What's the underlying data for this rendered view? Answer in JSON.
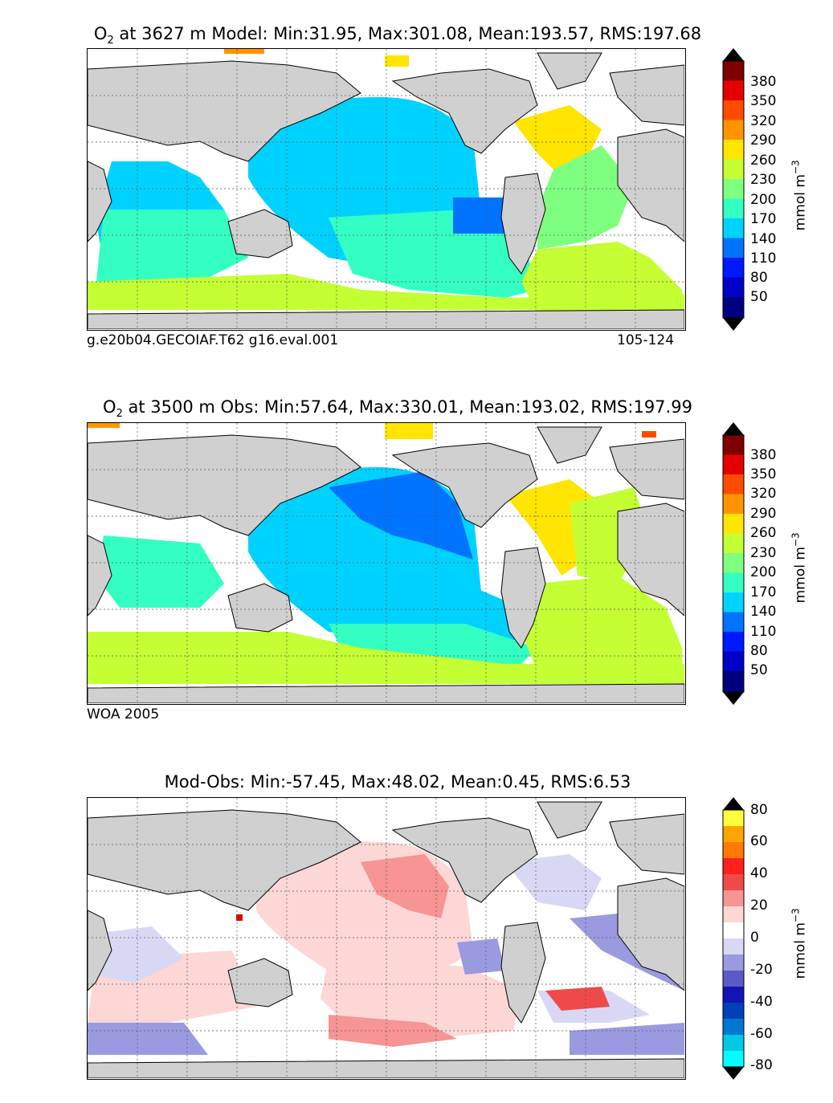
{
  "panels": [
    {
      "id": "model",
      "title_prefix": "O",
      "title_sub": "2",
      "title_rest": " at 3627 m Model: Min:31.95, Max:301.08, Mean:193.57, RMS:197.68",
      "caption_left": "g.e20b04.GECOIAF.T62 g16.eval.001",
      "caption_right": "105-124",
      "colorbar_ticks": [
        "380",
        "350",
        "320",
        "290",
        "260",
        "230",
        "200",
        "170",
        "140",
        "110",
        "80",
        "50"
      ],
      "units": "mmol m",
      "units_sup": "−3"
    },
    {
      "id": "obs",
      "title_prefix": "O",
      "title_sub": "2",
      "title_rest": " at 3500 m Obs: Min:57.64, Max:330.01, Mean:193.02, RMS:197.99",
      "caption_left": "WOA 2005",
      "caption_right": "",
      "colorbar_ticks": [
        "380",
        "350",
        "320",
        "290",
        "260",
        "230",
        "200",
        "170",
        "140",
        "110",
        "80",
        "50"
      ],
      "units": "mmol m",
      "units_sup": "−3"
    },
    {
      "id": "diff",
      "title_prefix": "",
      "title_sub": "",
      "title_rest": "Mod-Obs: Min:-57.45, Max:48.02, Mean:0.45, RMS:6.53",
      "caption_left": "",
      "caption_right": "",
      "colorbar_ticks": [
        "80",
        "60",
        "40",
        "20",
        "0",
        "-20",
        "-40",
        "-60",
        "-80"
      ],
      "units": "mmol m",
      "units_sup": "−3"
    }
  ],
  "colors": {
    "land": "#d0d0d0",
    "oxygen_scale": [
      "#00007f",
      "#0000c8",
      "#0019ff",
      "#0073ff",
      "#00d2ff",
      "#33ffc3",
      "#7fff7f",
      "#c3ff33",
      "#ffe500",
      "#ff9400",
      "#ff4a00",
      "#e50000",
      "#7f0000"
    ],
    "diff_scale": [
      "#00ffff",
      "#00c8e6",
      "#0078d2",
      "#0040b8",
      "#1414b4",
      "#5a5ac8",
      "#9a9ae0",
      "#d8d8f4",
      "#ffffff",
      "#fdd6d6",
      "#f79494",
      "#ef4a4a",
      "#ff2020",
      "#ff7a00",
      "#ffa500",
      "#ffff3c"
    ]
  }
}
